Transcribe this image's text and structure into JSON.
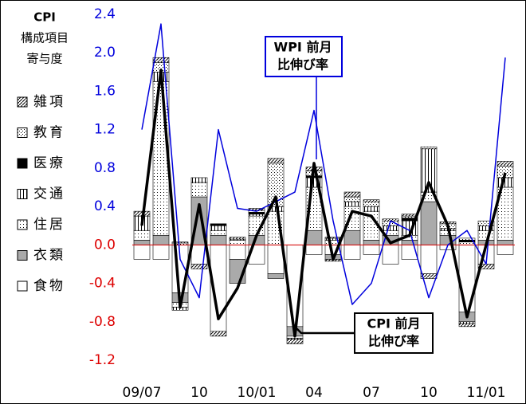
{
  "chart_data": {
    "type": "stacked_bar_line",
    "axis_title": [
      "CPI",
      "構成項目",
      "寄与度"
    ],
    "categories": [
      "09/07",
      null,
      null,
      "10",
      null,
      null,
      "10/01",
      null,
      null,
      "04",
      null,
      null,
      "07",
      null,
      null,
      "10",
      null,
      null,
      "11/01",
      null
    ],
    "ylim": [
      -1.2,
      2.4
    ],
    "yticks": [
      {
        "value": -1.2,
        "label": "-1.2"
      },
      -0.8,
      -0.4,
      {
        "value": 0,
        "label": "0.0"
      },
      0.4,
      0.8,
      1.2,
      1.6,
      {
        "value": 2,
        "label": "2.0"
      },
      2.4
    ],
    "series": [
      {
        "name": "食物",
        "color": "#ffffff",
        "pattern": "solid",
        "values": [
          -0.15,
          -0.15,
          -0.5,
          -0.2,
          -0.9,
          -0.15,
          -0.2,
          -0.3,
          -0.85,
          -0.1,
          -0.1,
          -0.15,
          -0.1,
          -0.2,
          -0.15,
          -0.3,
          -0.05,
          -0.7,
          -0.2,
          -0.1
        ]
      },
      {
        "name": "衣類",
        "color": "#aaaaaa",
        "pattern": "solid",
        "values": [
          0.05,
          0.1,
          -0.1,
          0.5,
          0.1,
          -0.25,
          0.1,
          -0.05,
          -0.1,
          0.15,
          -0.05,
          0.15,
          0.05,
          0.1,
          0.05,
          0.45,
          0.1,
          -0.1,
          0.05,
          0.05
        ]
      },
      {
        "name": "住居",
        "color": "#ffffff",
        "pattern": "dots",
        "values": [
          0.1,
          1.6,
          -0.05,
          0.15,
          0.05,
          0.05,
          0.2,
          0.35,
          -0.02,
          0.45,
          0.05,
          0.25,
          0.3,
          0.05,
          0.05,
          0.1,
          0.05,
          0.03,
          0.1,
          0.55
        ]
      },
      {
        "name": "交通",
        "color": "#ffffff",
        "pattern": "vlines",
        "values": [
          0.15,
          0.1,
          -0.03,
          0.05,
          0.05,
          0.01,
          0.02,
          0.05,
          -0.01,
          0.1,
          0.02,
          0.05,
          0.05,
          0.05,
          0.15,
          0.45,
          0.02,
          -0.02,
          0.05,
          0.1
        ]
      },
      {
        "name": "医療",
        "color": "#000000",
        "pattern": "solid",
        "values": [
          0,
          0,
          0,
          0,
          0.02,
          0,
          0.02,
          0,
          0,
          0.02,
          0,
          0,
          0,
          0,
          0.03,
          0,
          0,
          0.02,
          0,
          0
        ]
      },
      {
        "name": "教育",
        "color": "#ffffff",
        "pattern": "finedots",
        "values": [
          0,
          0.1,
          0.02,
          0,
          0,
          0,
          0.02,
          0.45,
          0,
          0.05,
          0.01,
          0.05,
          0.05,
          0.05,
          0.02,
          0.02,
          0.05,
          0.02,
          0.05,
          0.12
        ]
      },
      {
        "name": "雑項",
        "color": "#ffffff",
        "pattern": "hatch",
        "values": [
          0.05,
          0.05,
          0.01,
          -0.05,
          -0.05,
          0.02,
          0.02,
          0.05,
          -0.05,
          0.04,
          -0.02,
          0.05,
          0.02,
          0.02,
          0.02,
          -0.05,
          0.02,
          -0.03,
          -0.05,
          0.05
        ]
      }
    ],
    "lines": [
      {
        "name": "WPI",
        "color": "#0000dd",
        "width": 1.5,
        "values": [
          1.2,
          2.3,
          -0.15,
          -0.55,
          1.2,
          0.38,
          0.35,
          0.45,
          0.55,
          1.4,
          0.25,
          -0.62,
          -0.4,
          0.25,
          0.15,
          -0.55,
          0.0,
          0.15,
          -0.2,
          1.95
        ]
      },
      {
        "name": "CPI",
        "color": "#000000",
        "width": 3.5,
        "values": [
          0.2,
          1.82,
          -0.65,
          0.42,
          -0.77,
          -0.45,
          0.1,
          0.5,
          -0.95,
          0.85,
          -0.15,
          0.35,
          0.3,
          0.02,
          0.1,
          0.65,
          0.2,
          -0.75,
          0.0,
          0.75
        ]
      }
    ],
    "annotations": [
      {
        "lines": [
          "WPI 前月",
          "比伸び率"
        ],
        "color": "#0000dd"
      },
      {
        "lines": [
          "CPI 前月",
          "比伸び率"
        ],
        "color": "#000000"
      }
    ]
  }
}
